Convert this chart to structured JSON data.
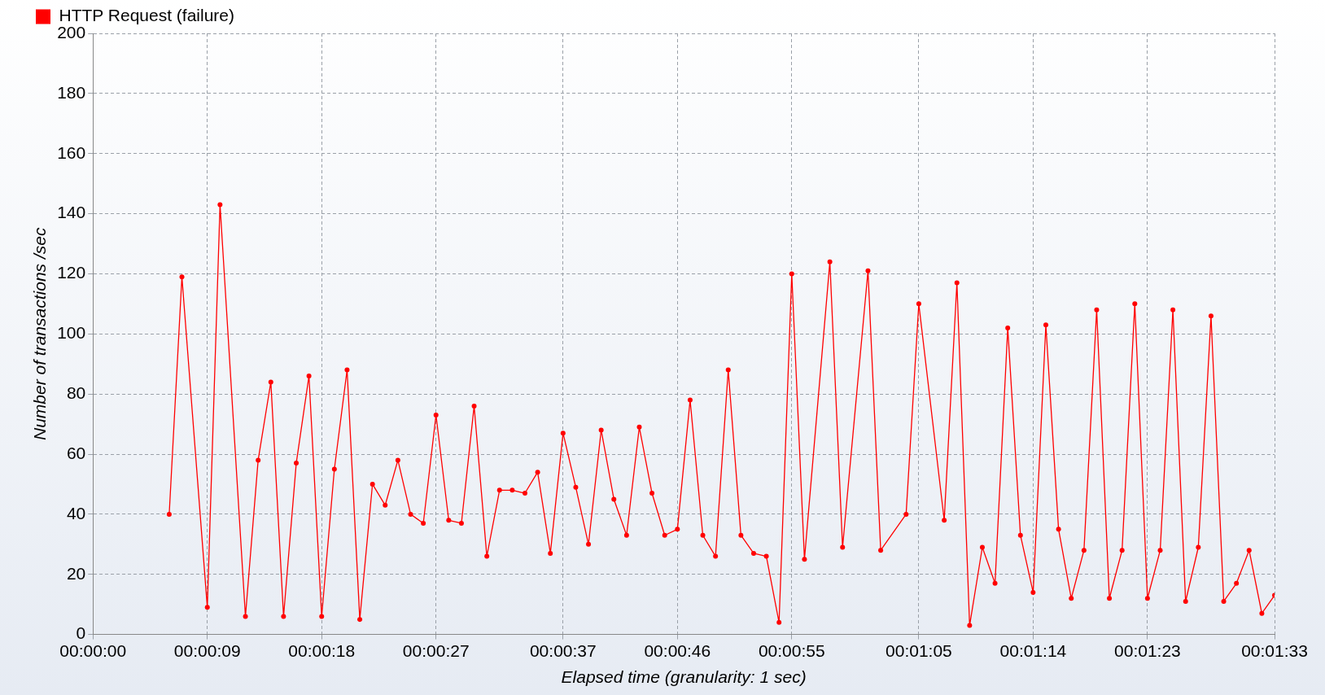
{
  "chart_data": {
    "type": "line",
    "xlabel": "Elapsed time (granularity: 1 sec)",
    "ylabel": "Number of transactions /sec",
    "xlim": [
      0,
      93
    ],
    "ylim": [
      0,
      200
    ],
    "xticks": [
      {
        "value": 0,
        "label": "00:00:00"
      },
      {
        "value": 9,
        "label": "00:00:09"
      },
      {
        "value": 18,
        "label": "00:00:18"
      },
      {
        "value": 27,
        "label": "00:00:27"
      },
      {
        "value": 37,
        "label": "00:00:37"
      },
      {
        "value": 46,
        "label": "00:00:46"
      },
      {
        "value": 55,
        "label": "00:00:55"
      },
      {
        "value": 65,
        "label": "00:01:05"
      },
      {
        "value": 74,
        "label": "00:01:14"
      },
      {
        "value": 83,
        "label": "00:01:23"
      },
      {
        "value": 93,
        "label": "00:01:33"
      }
    ],
    "yticks": [
      0,
      20,
      40,
      60,
      80,
      100,
      120,
      140,
      160,
      180,
      200
    ],
    "series": [
      {
        "name": "HTTP Request (failure)",
        "color": "#ff0000",
        "x": [
          6,
          7,
          9,
          10,
          12,
          13,
          14,
          15,
          16,
          17,
          18,
          19,
          20,
          21,
          22,
          23,
          24,
          25,
          26,
          27,
          28,
          29,
          30,
          31,
          32,
          33,
          34,
          35,
          36,
          37,
          38,
          39,
          40,
          41,
          42,
          43,
          44,
          45,
          46,
          47,
          48,
          49,
          50,
          51,
          52,
          53,
          54,
          55,
          56,
          58,
          59,
          61,
          62,
          64,
          65,
          67,
          68,
          69,
          70,
          71,
          72,
          73,
          74,
          75,
          76,
          77,
          78,
          79,
          80,
          81,
          82,
          83,
          84,
          85,
          86,
          87,
          88,
          89,
          90,
          91,
          92,
          93
        ],
        "values": [
          40,
          119,
          9,
          143,
          6,
          58,
          84,
          6,
          57,
          86,
          6,
          55,
          88,
          5,
          50,
          43,
          58,
          40,
          37,
          73,
          38,
          37,
          76,
          26,
          48,
          48,
          47,
          54,
          27,
          67,
          49,
          30,
          68,
          45,
          33,
          69,
          47,
          33,
          35,
          78,
          33,
          26,
          88,
          33,
          27,
          26,
          4,
          120,
          25,
          124,
          29,
          121,
          28,
          40,
          110,
          38,
          117,
          3,
          29,
          17,
          102,
          33,
          14,
          103,
          35,
          12,
          28,
          108,
          12,
          28,
          110,
          12,
          28,
          108,
          11,
          29,
          106,
          11,
          17,
          28,
          7,
          13
        ]
      }
    ],
    "grid": true,
    "legend": "top left",
    "marker": "circle",
    "line_style": "solid"
  }
}
